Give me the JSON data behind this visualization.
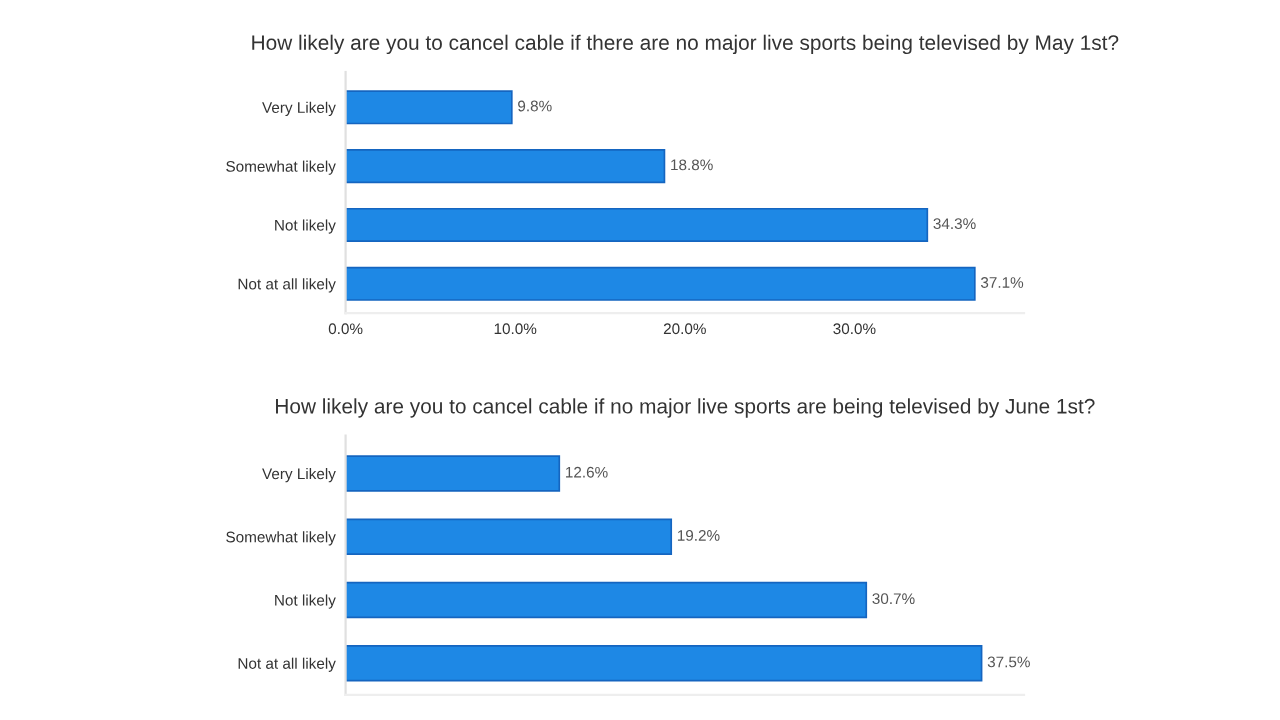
{
  "chart_data": [
    {
      "type": "bar",
      "orientation": "horizontal",
      "title": "How likely are you to cancel cable if there are no major live sports being televised by May 1st?",
      "categories": [
        "Very Likely",
        "Somewhat likely",
        "Not likely",
        "Not at all likely"
      ],
      "values": [
        9.8,
        18.8,
        34.3,
        37.1
      ],
      "value_labels": [
        "9.8%",
        "18.8%",
        "34.3%",
        "37.1%"
      ],
      "color": "#1e88e5",
      "xlim": [
        0,
        40
      ],
      "xticks": [
        {
          "value": 0,
          "label": "0.0%"
        },
        {
          "value": 10,
          "label": "10.0%"
        },
        {
          "value": 20,
          "label": "20.0%"
        },
        {
          "value": 30,
          "label": "30.0%"
        }
      ],
      "grid": false
    },
    {
      "type": "bar",
      "orientation": "horizontal",
      "title": "How likely are you to cancel cable if no major live sports are being televised by June 1st?",
      "categories": [
        "Very Likely",
        "Somewhat likely",
        "Not likely",
        "Not at all likely"
      ],
      "values": [
        12.6,
        19.2,
        30.7,
        37.5
      ],
      "value_labels": [
        "12.6%",
        "19.2%",
        "30.7%",
        "37.5%"
      ],
      "color": "#1e88e5",
      "xlim": [
        0,
        40
      ],
      "tick_labels": "y",
      "grid": false
    }
  ]
}
